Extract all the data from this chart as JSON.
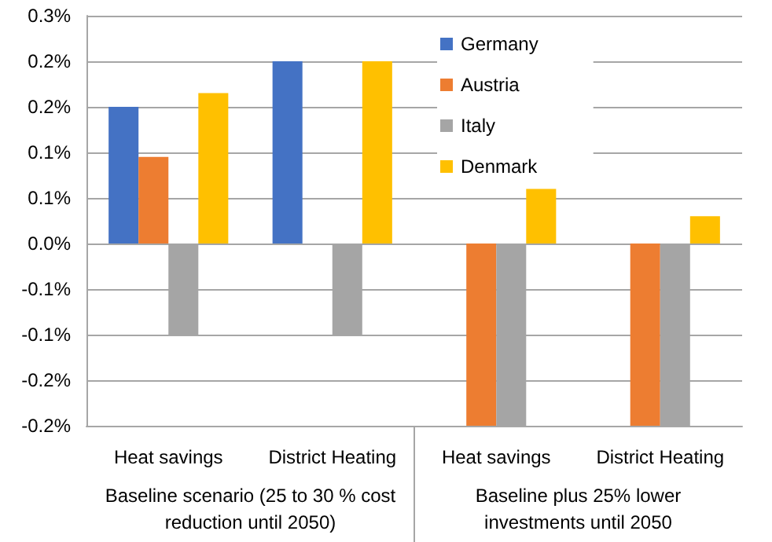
{
  "chart_data": {
    "type": "bar",
    "categories": [
      "Heat savings",
      "District Heating",
      "Heat savings",
      "District Heating"
    ],
    "series": [
      {
        "name": "Germany",
        "color": "#4472c4",
        "values": [
          0.15,
          0.2,
          null,
          null
        ]
      },
      {
        "name": "Austria",
        "color": "#ed7d31",
        "values": [
          0.095,
          null,
          -0.2,
          -0.2
        ]
      },
      {
        "name": "Italy",
        "color": "#a5a5a5",
        "values": [
          -0.1,
          -0.1,
          -0.2,
          -0.2
        ]
      },
      {
        "name": "Denmark",
        "color": "#ffc000",
        "values": [
          0.165,
          0.2,
          0.06,
          0.03
        ]
      }
    ],
    "ylim": [
      -0.2,
      0.25
    ],
    "yticks": [
      {
        "value": -0.2,
        "label": "-0.2%"
      },
      {
        "value": -0.15,
        "label": "-0.2%"
      },
      {
        "value": -0.1,
        "label": "-0.1%"
      },
      {
        "value": -0.05,
        "label": "-0.1%"
      },
      {
        "value": 0,
        "label": "0.0%"
      },
      {
        "value": 0.05,
        "label": "0.1%"
      },
      {
        "value": 0.1,
        "label": "0.1%"
      },
      {
        "value": 0.15,
        "label": "0.2%"
      },
      {
        "value": 0.2,
        "label": "0.2%"
      },
      {
        "value": 0.25,
        "label": "0.3%"
      }
    ],
    "annotations": [
      "Baseline scenario (25 to 30 % cost\nreduction until 2050)",
      "Baseline plus 25% lower\ninvestments until 2050"
    ],
    "grid": "y",
    "legend": "top"
  }
}
